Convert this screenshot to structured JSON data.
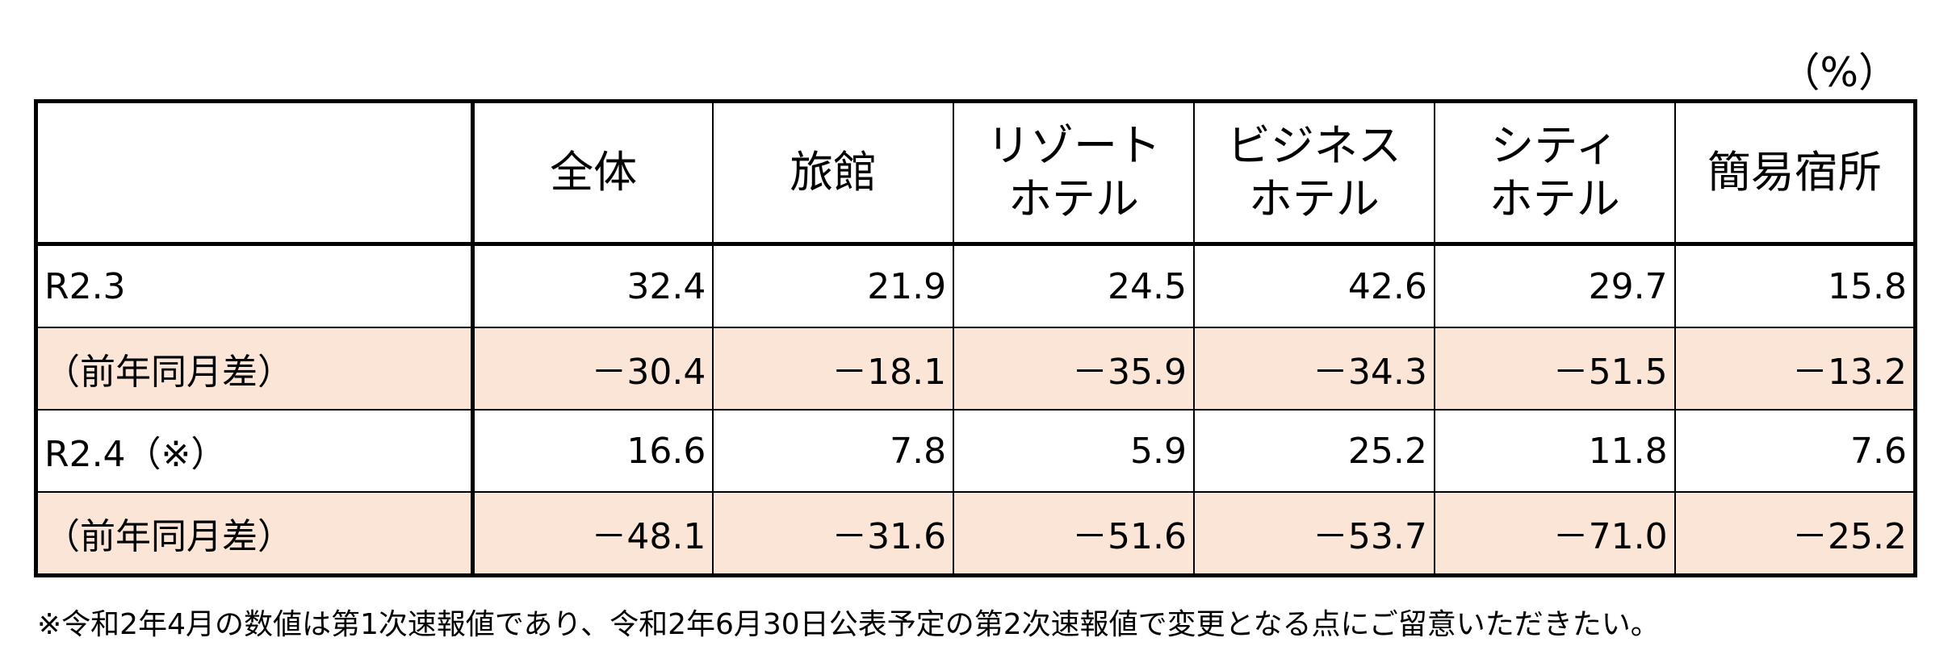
{
  "unit": "（%）",
  "table": {
    "columns": [
      "全体",
      "旅館",
      "リゾート\nホテル",
      "ビジネス\nホテル",
      "シティ\nホテル",
      "簡易宿所"
    ],
    "rows": [
      {
        "label": "R2.3",
        "values": [
          "32.4",
          "21.9",
          "24.5",
          "42.6",
          "29.7",
          "15.8"
        ]
      },
      {
        "label": "（前年同月差）",
        "values": [
          "－30.4",
          "－18.1",
          "－35.9",
          "－34.3",
          "－51.5",
          "－13.2"
        ]
      },
      {
        "label": "R2.4（※）",
        "values": [
          "16.6",
          "7.8",
          "5.9",
          "25.2",
          "11.8",
          "7.6"
        ]
      },
      {
        "label": "（前年同月差）",
        "values": [
          "－48.1",
          "－31.6",
          "－51.6",
          "－53.7",
          "－71.0",
          "－25.2"
        ]
      }
    ]
  },
  "footnote": "※令和2年4月の数値は第1次速報値であり、令和2年6月30日公表予定の第2次速報値で変更となる点にご留意いただきたい。"
}
